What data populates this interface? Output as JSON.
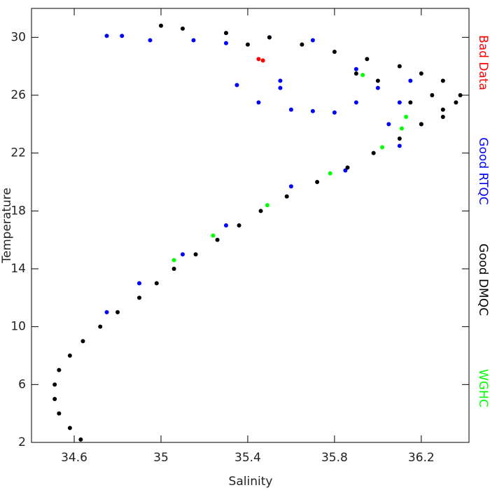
{
  "chart_data": {
    "type": "scatter",
    "x_label": "Salinity",
    "y_label": "Temperature",
    "xlim": [
      34.403,
      36.42
    ],
    "ylim": [
      2,
      32
    ],
    "xticks": [
      34.6,
      35.0,
      35.4,
      35.8,
      36.2
    ],
    "yticks": [
      2,
      6,
      10,
      14,
      18,
      22,
      26,
      30
    ],
    "legend": "right",
    "series": [
      {
        "name": "Bad Data",
        "color": "#ff0000",
        "x": [
          35.45,
          35.47
        ],
        "y": [
          28.5,
          28.4
        ]
      },
      {
        "name": "Good RTQC",
        "color": "#0000ff",
        "x": [
          34.75,
          34.82,
          34.95,
          35.15,
          35.3,
          35.5,
          35.7,
          35.9,
          36.0,
          36.1,
          36.2,
          36.1,
          35.35,
          35.45,
          35.6,
          35.7,
          35.8,
          35.55,
          35.9,
          36.05,
          35.85,
          35.6,
          35.3,
          35.1,
          34.9,
          34.75,
          35.55,
          36.15
        ],
        "y": [
          30.1,
          30.1,
          29.8,
          29.8,
          29.6,
          30,
          29.8,
          27.8,
          26.5,
          25.5,
          24,
          22.5,
          26.7,
          25.5,
          25,
          24.9,
          24.8,
          26.5,
          25.5,
          24,
          20.8,
          19.7,
          17,
          15,
          13,
          11,
          27,
          27
        ]
      },
      {
        "name": "Good DMQC",
        "color": "#000000",
        "x": [
          34.63,
          34.58,
          34.53,
          34.51,
          34.51,
          34.53,
          34.58,
          34.64,
          34.72,
          34.8,
          34.9,
          34.98,
          35.06,
          35.16,
          35.26,
          35.36,
          35.46,
          35.58,
          35.72,
          35.86,
          35.98,
          36.1,
          36.2,
          36.3,
          36.36,
          36.38,
          36.3,
          36.2,
          36.1,
          35.95,
          35.8,
          35.65,
          35.5,
          35.3,
          35.1,
          35.0,
          35.4,
          36.0,
          36.25,
          36.3,
          36.15,
          35.9
        ],
        "y": [
          2.2,
          3,
          4,
          5,
          6,
          7,
          8,
          9,
          10,
          11,
          12,
          13,
          14,
          15,
          16,
          17,
          18,
          19,
          20,
          21,
          22,
          23,
          24,
          25,
          25.5,
          26,
          27,
          27.5,
          28,
          28.5,
          29,
          29.5,
          30,
          30.3,
          30.6,
          30.8,
          29.5,
          27,
          26,
          24.5,
          25.5,
          27.5
        ]
      },
      {
        "name": "WGHC",
        "color": "#00ff00",
        "x": [
          36.02,
          35.78,
          35.49,
          35.24,
          35.06,
          36.11,
          36.13,
          35.93
        ],
        "y": [
          22.4,
          20.6,
          18.4,
          16.3,
          14.6,
          23.7,
          24.5,
          27.4
        ]
      }
    ]
  }
}
